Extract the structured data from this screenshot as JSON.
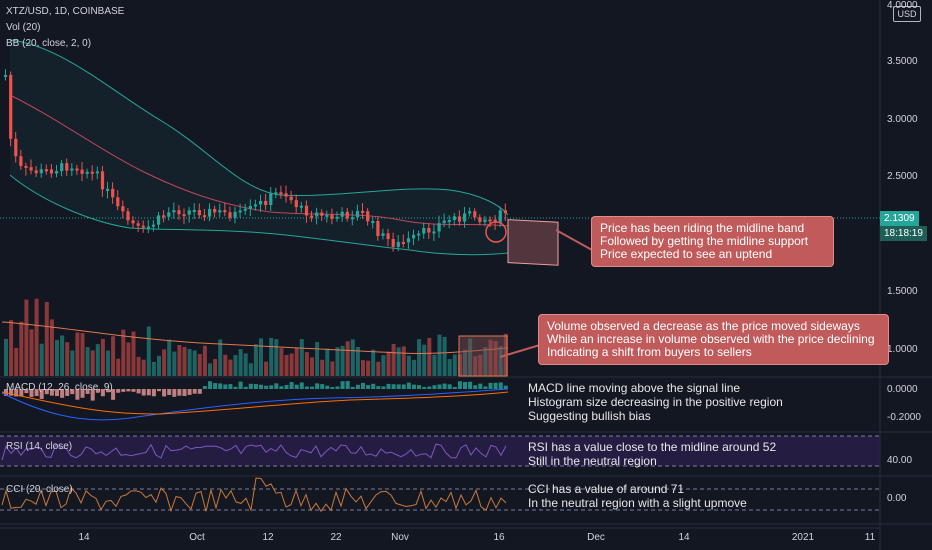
{
  "header": {
    "symbol_line": "XTZ/USD, 1D, COINBASE",
    "vol_line": "Vol (20)",
    "bb_line": "BB (20, close, 2, 0)",
    "currency_button": "USD"
  },
  "price_axis": {
    "ticks": [
      "4.0000",
      "3.5000",
      "3.0000",
      "2.5000",
      "1.5000",
      "1.0000"
    ],
    "last_price": "2.1309",
    "countdown": "18:18:19"
  },
  "macd": {
    "label": "MACD (12, 26, close, 9)",
    "ticks": [
      "0.0000",
      "-0.2000"
    ],
    "notes": [
      "MACD line moving above the signal line",
      "Histogram size decreasing in the positive region",
      "Suggesting bullish bias"
    ]
  },
  "rsi": {
    "label": "RSI (14, close)",
    "tick": "40.00",
    "notes": [
      "RSI has a value close to the midline around 52",
      "Still in the neutral region"
    ]
  },
  "cci": {
    "label": "CCI (20, close)",
    "tick": "0.00",
    "notes": [
      "CCI has a value of around 71",
      "In the neutral region with a slight upmove"
    ]
  },
  "callouts": {
    "price": [
      "Price has been riding the midline band",
      "Followed by getting the midline support",
      "Price expected to see an uptend"
    ],
    "volume": [
      "Volume observed a decrease as the price moved sideways",
      "While an increase in volume observed with the price declining",
      "Indicating a shift from buyers to sellers"
    ]
  },
  "time_axis": [
    "14",
    "Oct",
    "12",
    "22",
    "Nov",
    "16",
    "Dec",
    "14",
    "2021",
    "11"
  ],
  "colors": {
    "background": "#131722",
    "up": "#26a69a",
    "down": "#ef5350",
    "callout_fill": "#c15b5b",
    "bb_band": "#26a69a",
    "bb_basis": "#c2445a",
    "last_price_tag": "#26a69a",
    "countdown_tag": "#1e5f58"
  }
}
